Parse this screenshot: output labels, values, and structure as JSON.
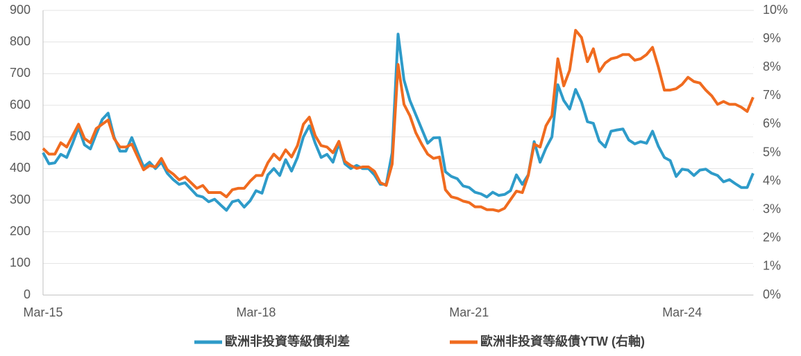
{
  "chart_data": {
    "type": "line",
    "categories": [
      "Mar-15",
      null,
      null,
      null,
      null,
      null,
      null,
      null,
      null,
      null,
      null,
      null,
      null,
      null,
      null,
      null,
      null,
      null,
      null,
      null,
      null,
      null,
      null,
      null,
      null,
      null,
      null,
      null,
      null,
      null,
      null,
      null,
      null,
      null,
      null,
      null,
      "Mar-18",
      null,
      null,
      null,
      null,
      null,
      null,
      null,
      null,
      null,
      null,
      null,
      null,
      null,
      null,
      null,
      null,
      null,
      null,
      null,
      null,
      null,
      null,
      null,
      null,
      null,
      null,
      null,
      null,
      null,
      null,
      null,
      null,
      null,
      null,
      null,
      "Mar-21",
      null,
      null,
      null,
      null,
      null,
      null,
      null,
      null,
      null,
      null,
      null,
      null,
      null,
      null,
      null,
      null,
      null,
      null,
      null,
      null,
      null,
      null,
      null,
      null,
      null,
      null,
      null,
      null,
      null,
      null,
      null,
      null,
      null,
      null,
      null,
      "Mar-24",
      null,
      null,
      null,
      null,
      null,
      null,
      null,
      null,
      null,
      null,
      null,
      null
    ],
    "series": [
      {
        "name": "歐洲非投資等級債利差",
        "color": "#2e9bc9",
        "values": [
          450,
          415,
          418,
          445,
          435,
          480,
          530,
          475,
          462,
          510,
          555,
          575,
          500,
          455,
          455,
          498,
          450,
          405,
          420,
          400,
          420,
          385,
          365,
          350,
          355,
          335,
          315,
          310,
          295,
          303,
          285,
          268,
          295,
          300,
          278,
          298,
          330,
          322,
          380,
          400,
          378,
          428,
          392,
          435,
          500,
          535,
          480,
          435,
          445,
          420,
          480,
          415,
          400,
          410,
          400,
          400,
          380,
          350,
          350,
          450,
          825,
          680,
          615,
          570,
          525,
          480,
          497,
          498,
          390,
          375,
          368,
          345,
          340,
          325,
          320,
          310,
          325,
          315,
          318,
          330,
          380,
          350,
          380,
          485,
          420,
          465,
          500,
          665,
          615,
          588,
          650,
          610,
          548,
          543,
          487,
          468,
          518,
          522,
          525,
          490,
          478,
          485,
          480,
          518,
          470,
          435,
          425,
          375,
          398,
          395,
          378,
          395,
          398,
          385,
          378,
          358,
          365,
          352,
          340,
          340,
          385
        ]
      },
      {
        "name": "歐洲非投資等級債YTW (右軸)",
        "color": "#f06b1f",
        "axis": "y2",
        "values": [
          5.15,
          4.95,
          4.95,
          5.35,
          5.2,
          5.6,
          6,
          5.5,
          5.35,
          5.85,
          6,
          6.15,
          5.5,
          5.2,
          5.2,
          5.3,
          4.85,
          4.4,
          4.55,
          4.5,
          4.8,
          4.4,
          4.25,
          4.05,
          4.15,
          3.95,
          3.75,
          3.85,
          3.6,
          3.6,
          3.6,
          3.45,
          3.7,
          3.75,
          3.75,
          4,
          4.2,
          4.2,
          4.65,
          4.95,
          4.75,
          5.1,
          4.85,
          5.25,
          6,
          6.25,
          5.6,
          5.25,
          5.2,
          5,
          5.4,
          4.7,
          4.55,
          4.45,
          4.5,
          4.5,
          4.35,
          3.95,
          3.85,
          4.6,
          8.1,
          6.7,
          6.3,
          5.7,
          5.3,
          4.95,
          4.8,
          4.85,
          3.7,
          3.45,
          3.4,
          3.3,
          3.25,
          3.1,
          3.1,
          3,
          3,
          2.95,
          3.05,
          3.35,
          3.65,
          3.6,
          4.2,
          5.3,
          5.2,
          5.95,
          6.3,
          8.3,
          7.35,
          7.9,
          9.3,
          9.05,
          8.2,
          8.65,
          7.85,
          8.15,
          8.3,
          8.35,
          8.45,
          8.45,
          8.25,
          8.3,
          8.45,
          8.7,
          8,
          7.2,
          7.2,
          7.25,
          7.4,
          7.65,
          7.5,
          7.45,
          7.2,
          7,
          6.7,
          6.8,
          6.7,
          6.7,
          6.6,
          6.45,
          6.95
        ]
      }
    ],
    "ylim": [
      0,
      900
    ],
    "yticks": [
      0,
      100,
      200,
      300,
      400,
      500,
      600,
      700,
      800,
      900
    ],
    "y2lim": [
      0,
      10
    ],
    "y2ticks": [
      {
        "value": 0,
        "label": "0%"
      },
      {
        "value": 1,
        "label": "1%"
      },
      {
        "value": 2,
        "label": "2%"
      },
      {
        "value": 3,
        "label": "3%"
      },
      {
        "value": 4,
        "label": "4%"
      },
      {
        "value": 5,
        "label": "5%"
      },
      {
        "value": 6,
        "label": "6%"
      },
      {
        "value": 7,
        "label": "7%"
      },
      {
        "value": 8,
        "label": "8%"
      },
      {
        "value": 9,
        "label": "9%"
      },
      {
        "value": 10,
        "label": "10%"
      }
    ],
    "grid": true,
    "legend": "bottom"
  }
}
